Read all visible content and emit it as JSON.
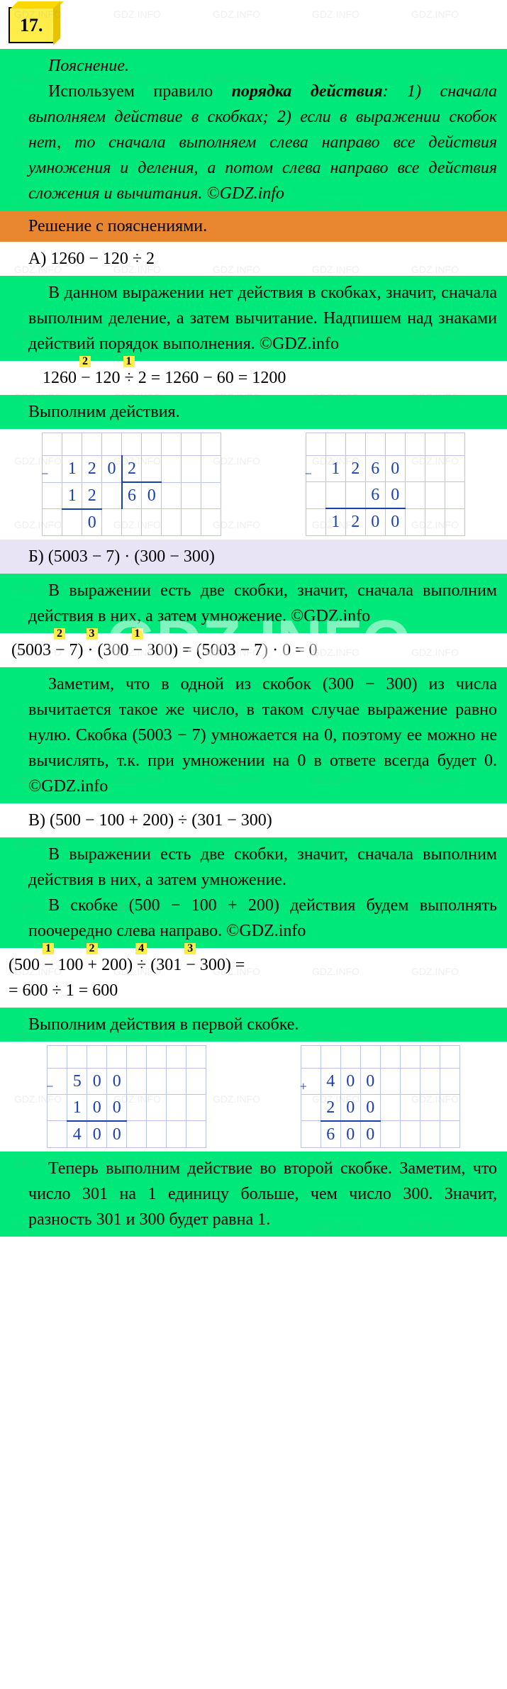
{
  "badge": "17.",
  "explain_title": "Пояснение.",
  "explain_text_1": "Используем правило ",
  "explain_bold": "порядка действия",
  "explain_text_2": ": 1) сначала выполняем действие в скобках; 2) если в выражении скобок нет, то сначала выполняем слева направо все действия умножения и деления, а потом слева направо все действия сложения и вычитания. ©GDZ.info",
  "solution_title": "Решение с пояснениями.",
  "partA": {
    "label": "А) 1260 − 120 ÷ 2",
    "text": "В данном выражении нет действия в скобках, значит, сначала выполним деление, а затем вычитание. Надпишем над знаками действий порядок выполнения. ©GDZ.info",
    "step_2": "2",
    "step_1": "1",
    "eq": "1260 − 120 ÷ 2 = 1260 − 60 = 1200",
    "perform": "Выполним действия.",
    "div": {
      "dividend": [
        "1",
        "2",
        "0"
      ],
      "divisor": "2",
      "sub": [
        "1",
        "2"
      ],
      "quotient": [
        "6",
        "0"
      ],
      "rem": "0"
    },
    "sub": {
      "top": [
        "1",
        "2",
        "6",
        "0"
      ],
      "bot": [
        "",
        "",
        "6",
        "0"
      ],
      "res": [
        "1",
        "2",
        "0",
        "0"
      ]
    }
  },
  "partB": {
    "label": "Б) (5003 − 7) · (300 − 300)",
    "text1": "В выражении есть две скобки, значит, сначала выполним действия в них, а затем умножение. ©GDZ.info",
    "s2": "2",
    "s3": "3",
    "s1": "1",
    "eq": "(5003 − 7) · (300 − 300) = (5003 − 7) · 0 = 0",
    "text2": "Заметим, что в одной из скобок (300 − 300) из числа вычитается такое же число, в таком случае выражение равно нулю. Скобка (5003 − 7) умножается на 0, поэтому ее можно не вычислять, т.к. при умножении на 0 в ответе всегда будет 0. ©GDZ.info"
  },
  "partC": {
    "label": "В) (500 − 100 + 200) ÷ (301 − 300)",
    "text1": "В выражении есть две скобки, значит, сначала выполним действия в них, а затем умножение.",
    "text2": "В скобке (500 − 100 + 200) действия будем выполнять поочередно слева направо. ©GDZ.info",
    "s1": "1",
    "s2": "2",
    "s4": "4",
    "s3": "3",
    "eq1": "(500 − 100 + 200) ÷ (301 − 300) =",
    "eq2": "= 600 ÷ 1 = 600",
    "perform": "Выполним действия в первой скобке.",
    "sub1": {
      "top": [
        "5",
        "0",
        "0"
      ],
      "bot": [
        "1",
        "0",
        "0"
      ],
      "res": [
        "4",
        "0",
        "0"
      ]
    },
    "add1": {
      "top": [
        "4",
        "0",
        "0"
      ],
      "bot": [
        "2",
        "0",
        "0"
      ],
      "res": [
        "6",
        "0",
        "0"
      ]
    },
    "text3": "Теперь выполним действие во второй скобке. Заметим, что число 301 на 1 единицу больше, чем число 300. Значит, разность 301 и 300 будет равна 1."
  },
  "watermark": "GDZ.INFO"
}
